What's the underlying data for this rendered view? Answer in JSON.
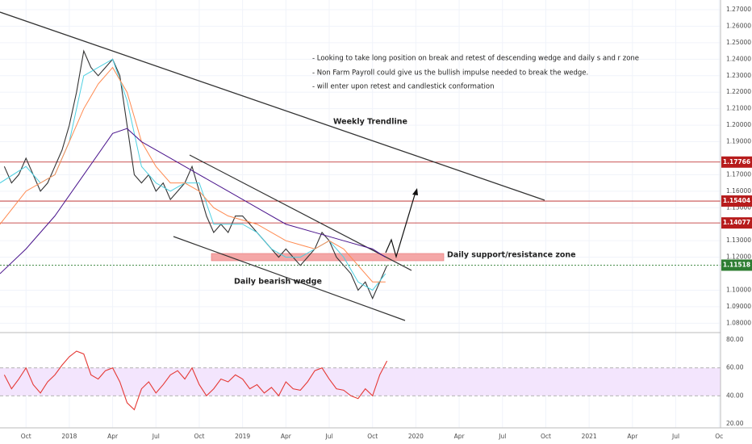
{
  "chart_data": [
    {
      "type": "line",
      "annotations": [
        "- Looking to take long position on break and retest of descending wedge and daily s and r zone",
        "- Non Farm Payroll could give us the bullish impulse needed to break the wedge.",
        "-  will enter upon retest and candlestick conformation"
      ],
      "labels": [
        "Weekly Trendline",
        "Daily support/resistance zone",
        "Daily bearish wedge"
      ],
      "xlim": [
        -1.8,
        48.1
      ],
      "xticks": [
        {
          "value": 0,
          "label": "Oct"
        },
        {
          "value": 3,
          "label": "2018"
        },
        {
          "value": 6,
          "label": "Apr"
        },
        {
          "value": 9,
          "label": "Jul"
        },
        {
          "value": 12,
          "label": "Oct"
        },
        {
          "value": 15,
          "label": "2019"
        },
        {
          "value": 18,
          "label": "Apr"
        },
        {
          "value": 21,
          "label": "Jul"
        },
        {
          "value": 24,
          "label": "Oct"
        },
        {
          "value": 27,
          "label": "2020"
        },
        {
          "value": 30,
          "label": "Apr"
        },
        {
          "value": 33,
          "label": "Jul"
        },
        {
          "value": 36,
          "label": "Oct"
        },
        {
          "value": 39,
          "label": "2021"
        },
        {
          "value": 42,
          "label": "Apr"
        },
        {
          "value": 45,
          "label": "Jul"
        },
        {
          "value": 48,
          "label": "Oc"
        }
      ],
      "ylim": [
        1.0743,
        1.2759
      ],
      "yticks": [
        {
          "value": 1.27,
          "label": "1.27000"
        },
        {
          "value": 1.26,
          "label": "1.26000"
        },
        {
          "value": 1.25,
          "label": "1.25000"
        },
        {
          "value": 1.24,
          "label": "1.24000"
        },
        {
          "value": 1.23,
          "label": "1.23000"
        },
        {
          "value": 1.22,
          "label": "1.22000"
        },
        {
          "value": 1.21,
          "label": "1.21000"
        },
        {
          "value": 1.2,
          "label": "1.20000"
        },
        {
          "value": 1.19,
          "label": "1.19000"
        },
        {
          "value": 1.17,
          "label": "1.17000"
        },
        {
          "value": 1.16,
          "label": "1.16000"
        },
        {
          "value": 1.15,
          "label": "1.15000"
        },
        {
          "value": 1.13,
          "label": "1.13000"
        },
        {
          "value": 1.12,
          "label": "1.12000"
        },
        {
          "value": 1.1,
          "label": "1.10000"
        },
        {
          "value": 1.09,
          "label": "1.09000"
        },
        {
          "value": 1.08,
          "label": "1.08000"
        }
      ],
      "grid": true,
      "levels": [
        {
          "value": 1.17766,
          "color": "#b71c1c"
        },
        {
          "value": 1.15404,
          "color": "#b71c1c"
        },
        {
          "value": 1.14077,
          "color": "#b71c1c"
        },
        {
          "value": 1.11518,
          "color": "#2e7d32"
        }
      ],
      "series": [
        {
          "color": "#333333",
          "x": [
            -1.5,
            -1,
            -0.5,
            0,
            0.5,
            1,
            1.5,
            2,
            2.5,
            3,
            3.5,
            4,
            4.5,
            5,
            5.5,
            6,
            6.5,
            7,
            7.5,
            8,
            8.5,
            9,
            9.5,
            10,
            10.5,
            11,
            11.5,
            12,
            12.5,
            13,
            13.5,
            14,
            14.5,
            15,
            15.5,
            16,
            16.5,
            17,
            17.5,
            18,
            18.5,
            19,
            19.5,
            20,
            20.5,
            21,
            21.5,
            22,
            22.5,
            23,
            23.5,
            24,
            24.5,
            25
          ],
          "values": [
            1.175,
            1.165,
            1.17,
            1.18,
            1.17,
            1.16,
            1.165,
            1.175,
            1.185,
            1.2,
            1.22,
            1.245,
            1.235,
            1.23,
            1.235,
            1.24,
            1.23,
            1.2,
            1.17,
            1.165,
            1.17,
            1.16,
            1.165,
            1.155,
            1.16,
            1.165,
            1.175,
            1.16,
            1.145,
            1.135,
            1.14,
            1.135,
            1.145,
            1.145,
            1.14,
            1.135,
            1.13,
            1.125,
            1.12,
            1.125,
            1.12,
            1.115,
            1.12,
            1.125,
            1.135,
            1.13,
            1.12,
            1.115,
            1.11,
            1.1,
            1.105,
            1.095,
            1.105,
            1.115
          ]
        },
        {
          "color": "#4dd0e1",
          "x": [
            -1.8,
            0,
            1,
            2,
            3,
            4,
            5,
            6,
            7,
            8,
            9,
            10,
            11,
            12,
            13,
            14,
            15,
            16,
            17,
            18,
            19,
            20,
            21,
            22,
            23,
            24,
            24.9
          ],
          "values": [
            1.165,
            1.175,
            1.165,
            1.17,
            1.19,
            1.23,
            1.235,
            1.24,
            1.215,
            1.175,
            1.165,
            1.16,
            1.165,
            1.165,
            1.14,
            1.14,
            1.14,
            1.135,
            1.125,
            1.12,
            1.12,
            1.125,
            1.13,
            1.12,
            1.105,
            1.1,
            1.11
          ]
        },
        {
          "color": "#ff8a50",
          "x": [
            -1.8,
            0,
            2,
            4,
            5,
            6,
            7,
            8,
            9,
            10,
            11,
            12,
            13,
            14,
            16,
            18,
            20,
            21,
            22,
            23,
            24,
            24.9
          ],
          "values": [
            1.14,
            1.16,
            1.17,
            1.21,
            1.225,
            1.235,
            1.22,
            1.19,
            1.175,
            1.165,
            1.165,
            1.16,
            1.15,
            1.145,
            1.14,
            1.13,
            1.125,
            1.13,
            1.125,
            1.115,
            1.105,
            1.105
          ]
        },
        {
          "color": "#4a148c",
          "x": [
            -1.8,
            0,
            2,
            4,
            6,
            7,
            8,
            10,
            12,
            14,
            16,
            18,
            20,
            22,
            24,
            24.9
          ],
          "values": [
            1.11,
            1.125,
            1.145,
            1.17,
            1.195,
            1.198,
            1.19,
            1.18,
            1.17,
            1.16,
            1.15,
            1.14,
            1.135,
            1.13,
            1.125,
            1.12
          ]
        }
      ]
    },
    {
      "type": "line",
      "xlim": [
        -1.8,
        48.1
      ],
      "ylim": [
        17,
        83
      ],
      "yticks": [
        {
          "value": 80,
          "label": "80.00"
        },
        {
          "value": 60,
          "label": "60.00"
        },
        {
          "value": 40,
          "label": "40.00"
        },
        {
          "value": 20,
          "label": "20.00"
        }
      ],
      "band": [
        40,
        60
      ],
      "series": [
        {
          "color": "#e53935",
          "x": [
            -1.5,
            -1,
            -0.5,
            0,
            0.5,
            1,
            1.5,
            2,
            2.5,
            3,
            3.5,
            4,
            4.5,
            5,
            5.5,
            6,
            6.5,
            7,
            7.5,
            8,
            8.5,
            9,
            9.5,
            10,
            10.5,
            11,
            11.5,
            12,
            12.5,
            13,
            13.5,
            14,
            14.5,
            15,
            15.5,
            16,
            16.5,
            17,
            17.5,
            18,
            18.5,
            19,
            19.5,
            20,
            20.5,
            21,
            21.5,
            22,
            22.5,
            23,
            23.5,
            24,
            24.5,
            25
          ],
          "values": [
            55,
            45,
            52,
            60,
            48,
            42,
            50,
            55,
            62,
            68,
            72,
            70,
            55,
            52,
            58,
            60,
            50,
            35,
            30,
            45,
            50,
            42,
            48,
            55,
            58,
            52,
            60,
            48,
            40,
            45,
            52,
            50,
            55,
            52,
            45,
            48,
            42,
            46,
            40,
            50,
            45,
            44,
            50,
            58,
            60,
            52,
            45,
            44,
            40,
            38,
            45,
            40,
            55,
            65
          ]
        }
      ]
    }
  ]
}
